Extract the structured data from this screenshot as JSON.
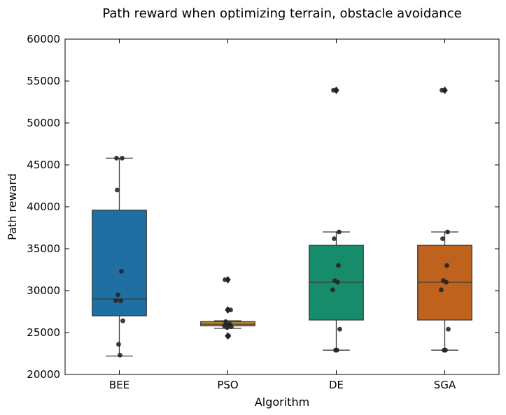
{
  "chart_data": {
    "type": "box",
    "title": "Path reward when optimizing terrain, obstacle avoidance",
    "xlabel": "Algorithm",
    "ylabel": "Path reward",
    "ylim": [
      20000,
      60000
    ],
    "yticks": [
      20000,
      25000,
      30000,
      35000,
      40000,
      45000,
      50000,
      55000,
      60000
    ],
    "categories": [
      "BEE",
      "PSO",
      "DE",
      "SGA"
    ],
    "colors": [
      "#1f6fa3",
      "#bc8a2a",
      "#168c6a",
      "#bf621d"
    ],
    "boxes": [
      {
        "name": "BEE",
        "whisker_low": 22200,
        "q1": 27000,
        "median": 29000,
        "q3": 39600,
        "whisker_high": 45800,
        "outliers": []
      },
      {
        "name": "PSO",
        "whisker_low": 25500,
        "q1": 25800,
        "median": 26000,
        "q3": 26300,
        "whisker_high": 26400,
        "outliers": [
          31300,
          27700,
          24600
        ]
      },
      {
        "name": "DE",
        "whisker_low": 22900,
        "q1": 26500,
        "median": 31000,
        "q3": 35400,
        "whisker_high": 37000,
        "outliers": [
          53900
        ]
      },
      {
        "name": "SGA",
        "whisker_low": 22900,
        "q1": 26500,
        "median": 31000,
        "q3": 35400,
        "whisker_high": 37000,
        "outliers": [
          53900
        ]
      }
    ],
    "points": [
      {
        "category": "BEE",
        "values": [
          45800,
          45800,
          42000,
          32300,
          29500,
          28800,
          28800,
          26400,
          23600,
          22300
        ]
      },
      {
        "category": "PSO",
        "values": [
          31300,
          27700,
          26300,
          26000,
          26000,
          25900,
          25800,
          25700,
          25600,
          24600
        ]
      },
      {
        "category": "DE",
        "values": [
          53900,
          37000,
          36200,
          33000,
          31200,
          31000,
          30100,
          25400,
          22900,
          22900
        ]
      },
      {
        "category": "SGA",
        "values": [
          53900,
          37000,
          36200,
          33000,
          31200,
          31000,
          30100,
          25400,
          22900,
          22900
        ]
      }
    ],
    "grid": false,
    "legend": "none"
  }
}
